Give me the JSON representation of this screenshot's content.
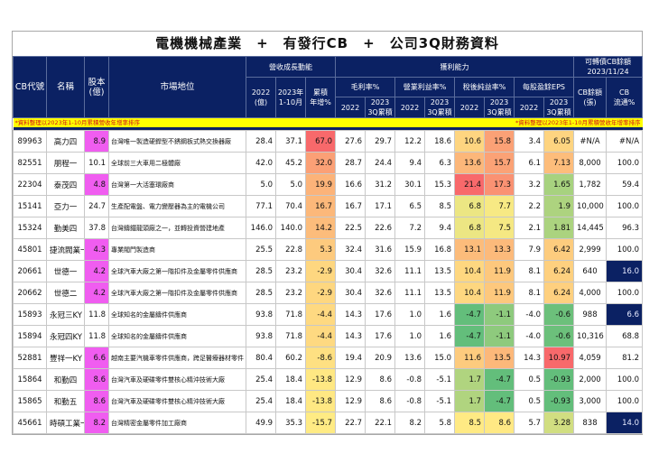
{
  "title": "電機機械產業　+　有發行CB　+　公司3Q財務資料",
  "headers": {
    "cb_code": "CB代號",
    "name": "名稱",
    "capital": "股本\n(億)",
    "market_position": "市場地位",
    "revenue_group": "營收成長動能",
    "rev_2022": "2022\n(億)",
    "rev_2023": "2023年\n1-10月",
    "rev_growth": "累積\n年增%",
    "profit_group": "獲利能力",
    "gross_margin": "毛利率%",
    "op_margin": "營業利益率%",
    "net_margin": "稅後純益率%",
    "eps": "每股盈餘EPS",
    "y2022": "2022",
    "y2023_3q": "2023\n3Q累積",
    "cb_group": "可轉債CB餘額\n2023/11/24",
    "cb_balance": "CB餘額\n(張)",
    "cb_float": "CB\n流通%"
  },
  "note_left": "*資料整理以2023年1-10月累積營收年增率排序",
  "note_right": "*資料整理以2023年1-10月累積營收年增率排序",
  "colors": {
    "header_navy": "#0b2163",
    "note_yellow": "#ffff00",
    "highlight_pink": "#f05df0",
    "heat_red": "#f8696b",
    "heat_yellow": "#ffeb84",
    "heat_green": "#63be7b"
  },
  "rows": [
    {
      "code": "89963",
      "name": "高力四",
      "capital": "8.9",
      "pink": true,
      "position": "台灣唯一製造硬銲型不銹鋼板式熱交換器廠",
      "rev2022": "28.4",
      "rev2023": "37.1",
      "growth": "67.0",
      "gm22": "27.6",
      "gm23": "29.7",
      "om22": "12.2",
      "om23": "18.6",
      "nm22": "10.6",
      "nm23": "15.8",
      "eps22": "3.4",
      "eps23": "6.05",
      "cb_bal": "#N/A",
      "cb_float": "#N/A",
      "navy": false
    },
    {
      "code": "82551",
      "name": "朋程一",
      "capital": "10.1",
      "pink": false,
      "position": "全球前三大車用二極體廠",
      "rev2022": "42.0",
      "rev2023": "45.2",
      "growth": "32.0",
      "gm22": "28.7",
      "gm23": "24.4",
      "om22": "9.4",
      "om23": "6.3",
      "nm22": "13.6",
      "nm23": "15.7",
      "eps22": "6.1",
      "eps23": "7.13",
      "cb_bal": "8,000",
      "cb_float": "100.0",
      "navy": false
    },
    {
      "code": "22304",
      "name": "泰茂四",
      "capital": "4.8",
      "pink": true,
      "position": "台灣第一大活塞環廠商",
      "rev2022": "5.0",
      "rev2023": "5.0",
      "growth": "19.9",
      "gm22": "16.6",
      "gm23": "31.2",
      "om22": "30.1",
      "om23": "15.3",
      "nm22": "21.4",
      "nm23": "17.3",
      "eps22": "3.2",
      "eps23": "1.65",
      "cb_bal": "1,782",
      "cb_float": "59.4",
      "navy": false
    },
    {
      "code": "15141",
      "name": "亞力一",
      "capital": "24.7",
      "pink": false,
      "position": "生產配電盤、電力變壓器為主的電機公司",
      "rev2022": "77.1",
      "rev2023": "70.4",
      "growth": "16.7",
      "gm22": "16.7",
      "gm23": "17.1",
      "om22": "6.5",
      "om23": "8.5",
      "nm22": "6.8",
      "nm23": "7.7",
      "eps22": "2.2",
      "eps23": "1.9",
      "cb_bal": "10,000",
      "cb_float": "100.0",
      "navy": false
    },
    {
      "code": "15324",
      "name": "勤美四",
      "capital": "37.8",
      "pink": false,
      "position": "台灣鑄鐵龍頭廠之一，並轉投資營建地產",
      "rev2022": "146.0",
      "rev2023": "140.0",
      "growth": "14.2",
      "gm22": "22.5",
      "gm23": "22.6",
      "om22": "7.2",
      "om23": "9.4",
      "nm22": "6.8",
      "nm23": "7.5",
      "eps22": "2.1",
      "eps23": "1.81",
      "cb_bal": "14,445",
      "cb_float": "96.3",
      "navy": false
    },
    {
      "code": "45801",
      "name": "捷流閥業一",
      "capital": "4.3",
      "pink": true,
      "position": "專業閥門製造商",
      "rev2022": "25.5",
      "rev2023": "22.8",
      "growth": "5.3",
      "gm22": "32.4",
      "gm23": "31.6",
      "om22": "15.9",
      "om23": "16.8",
      "nm22": "13.1",
      "nm23": "13.3",
      "eps22": "7.9",
      "eps23": "6.42",
      "cb_bal": "2,999",
      "cb_float": "100.0",
      "navy": false
    },
    {
      "code": "20661",
      "name": "世德一",
      "capital": "4.2",
      "pink": true,
      "position": "全球汽車大廠之第一階扣件及金屬零件供應商",
      "rev2022": "28.5",
      "rev2023": "23.2",
      "growth": "-2.9",
      "gm22": "30.4",
      "gm23": "32.6",
      "om22": "11.1",
      "om23": "13.5",
      "nm22": "10.4",
      "nm23": "11.9",
      "eps22": "8.1",
      "eps23": "6.24",
      "cb_bal": "640",
      "cb_float": "16.0",
      "navy": true
    },
    {
      "code": "20662",
      "name": "世德二",
      "capital": "4.2",
      "pink": true,
      "position": "全球汽車大廠之第一階扣件及金屬零件供應商",
      "rev2022": "28.5",
      "rev2023": "23.2",
      "growth": "-2.9",
      "gm22": "30.4",
      "gm23": "32.6",
      "om22": "11.1",
      "om23": "13.5",
      "nm22": "10.4",
      "nm23": "11.9",
      "eps22": "8.1",
      "eps23": "6.24",
      "cb_bal": "4,000",
      "cb_float": "100.0",
      "navy": false
    },
    {
      "code": "15893",
      "name": "永冠三KY",
      "capital": "11.8",
      "pink": false,
      "position": "全球知名的金屬鑄件供應商",
      "rev2022": "93.8",
      "rev2023": "71.8",
      "growth": "-4.4",
      "gm22": "14.3",
      "gm23": "17.6",
      "om22": "1.0",
      "om23": "1.6",
      "nm22": "-4.7",
      "nm23": "-1.1",
      "eps22": "-4.0",
      "eps23": "-0.6",
      "cb_bal": "988",
      "cb_float": "6.6",
      "navy": true
    },
    {
      "code": "15894",
      "name": "永冠四KY",
      "capital": "11.8",
      "pink": false,
      "position": "全球知名的金屬鑄件供應商",
      "rev2022": "93.8",
      "rev2023": "71.8",
      "growth": "-4.4",
      "gm22": "14.3",
      "gm23": "17.6",
      "om22": "1.0",
      "om23": "1.6",
      "nm22": "-4.7",
      "nm23": "-1.1",
      "eps22": "-4.0",
      "eps23": "-0.6",
      "cb_bal": "10,316",
      "cb_float": "68.8",
      "navy": false
    },
    {
      "code": "52881",
      "name": "豐祥一KY",
      "capital": "6.6",
      "pink": true,
      "position": "越南主要汽機車零件供應商，跨足醫療器材零件",
      "rev2022": "80.4",
      "rev2023": "60.2",
      "growth": "-8.6",
      "gm22": "19.4",
      "gm23": "20.9",
      "om22": "13.6",
      "om23": "15.0",
      "nm22": "11.6",
      "nm23": "13.5",
      "eps22": "14.3",
      "eps23": "10.97",
      "cb_bal": "4,059",
      "cb_float": "81.2",
      "navy": false
    },
    {
      "code": "15864",
      "name": "和勤四",
      "capital": "8.6",
      "pink": true,
      "position": "台灣汽車及硬碟零件雙核心精沖技術大廠",
      "rev2022": "25.4",
      "rev2023": "18.4",
      "growth": "-13.8",
      "gm22": "12.9",
      "gm23": "8.6",
      "om22": "-0.8",
      "om23": "-5.1",
      "nm22": "1.7",
      "nm23": "-4.7",
      "eps22": "0.5",
      "eps23": "-0.93",
      "cb_bal": "2,000",
      "cb_float": "100.0",
      "navy": false
    },
    {
      "code": "15865",
      "name": "和勤五",
      "capital": "8.6",
      "pink": true,
      "position": "台灣汽車及硬碟零件雙核心精沖技術大廠",
      "rev2022": "25.4",
      "rev2023": "18.4",
      "growth": "-13.8",
      "gm22": "12.9",
      "gm23": "8.6",
      "om22": "-0.8",
      "om23": "-5.1",
      "nm22": "1.7",
      "nm23": "-4.7",
      "eps22": "0.5",
      "eps23": "-0.93",
      "cb_bal": "3,000",
      "cb_float": "100.0",
      "navy": false
    },
    {
      "code": "45661",
      "name": "時碩工業一",
      "capital": "8.2",
      "pink": true,
      "position": "台灣精密金屬零件加工廠商",
      "rev2022": "49.9",
      "rev2023": "35.3",
      "growth": "-15.7",
      "gm22": "22.7",
      "gm23": "22.1",
      "om22": "8.2",
      "om23": "5.8",
      "nm22": "8.5",
      "nm23": "8.6",
      "eps22": "5.7",
      "eps23": "3.28",
      "cb_bal": "838",
      "cb_float": "14.0",
      "navy": true
    }
  ]
}
